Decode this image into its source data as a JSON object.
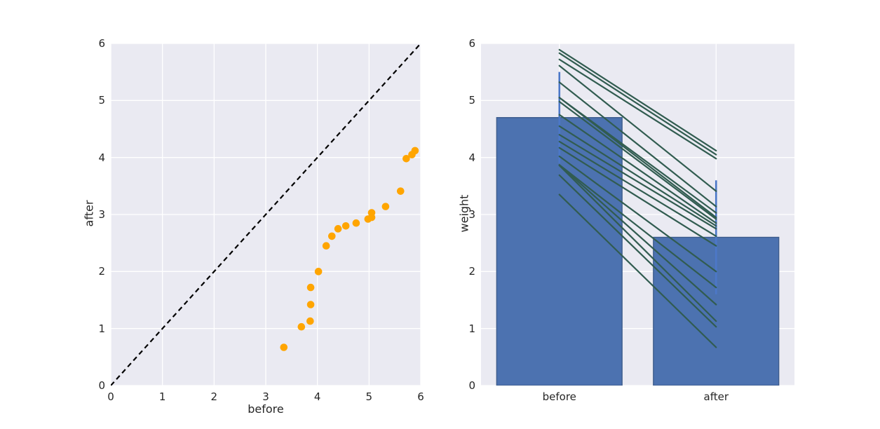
{
  "figure": {
    "background": "#ffffff",
    "axes_background": "#eaeaf2",
    "grid_color": "#ffffff",
    "text_color": "#262626"
  },
  "chart_data": [
    {
      "type": "scatter",
      "xlabel": "before",
      "ylabel": "after",
      "xlim": [
        0,
        6
      ],
      "ylim": [
        0,
        6
      ],
      "xticks": [
        "0",
        "1",
        "2",
        "3",
        "4",
        "5",
        "6"
      ],
      "yticks": [
        "0",
        "1",
        "2",
        "3",
        "4",
        "5",
        "6"
      ],
      "grid": true,
      "point_color": "#ffa500",
      "x": [
        3.35,
        3.69,
        3.86,
        3.87,
        3.87,
        4.02,
        4.17,
        4.28,
        4.4,
        4.55,
        4.75,
        4.98,
        5.05,
        5.05,
        5.32,
        5.61,
        5.72,
        5.83,
        5.89
      ],
      "y": [
        0.67,
        1.03,
        1.13,
        1.42,
        1.72,
        2.0,
        2.45,
        2.62,
        2.75,
        2.8,
        2.85,
        2.92,
        2.95,
        3.03,
        3.14,
        3.41,
        3.98,
        4.05,
        4.12
      ],
      "reference_line": {
        "description": "identity line y = x",
        "from": [
          0,
          0
        ],
        "to": [
          6,
          6
        ],
        "color": "#000000",
        "dashed": true
      }
    },
    {
      "type": "bar",
      "categories": [
        "before",
        "after"
      ],
      "values": [
        4.7,
        2.6
      ],
      "error_low": [
        3.9,
        1.6
      ],
      "error_high": [
        5.5,
        3.6
      ],
      "ylabel": "weight",
      "ylim": [
        0,
        6
      ],
      "yticks": [
        "0",
        "1",
        "2",
        "3",
        "4",
        "5",
        "6"
      ],
      "grid": true,
      "bar_color": "#4c72b0",
      "bar_edge_color": "#3d5c8c",
      "error_color": "#4c78c8",
      "pair_lines": {
        "color": "#315c50",
        "before": [
          3.35,
          3.69,
          3.86,
          3.87,
          3.87,
          4.02,
          4.17,
          4.28,
          4.4,
          4.55,
          4.75,
          4.98,
          5.05,
          5.05,
          5.32,
          5.61,
          5.72,
          5.83,
          5.89
        ],
        "after": [
          0.67,
          1.03,
          1.13,
          1.42,
          1.72,
          2.0,
          2.45,
          2.62,
          2.75,
          2.8,
          2.85,
          2.92,
          2.95,
          3.03,
          3.14,
          3.41,
          3.98,
          4.05,
          4.12
        ]
      }
    }
  ]
}
